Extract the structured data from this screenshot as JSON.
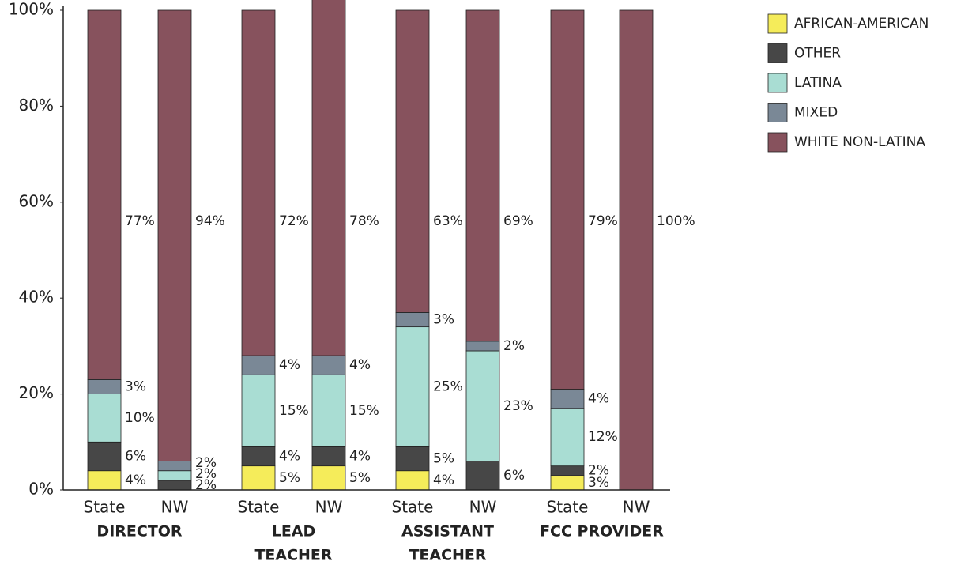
{
  "chart_data": {
    "type": "stacked_bar",
    "categories": [
      "State",
      "NW",
      "State",
      "NW",
      "State",
      "NW",
      "State",
      "NW"
    ],
    "groups": [
      [
        "DIRECTOR"
      ],
      [
        "LEAD",
        "TEACHER"
      ],
      [
        "ASSISTANT",
        "TEACHER"
      ],
      [
        "FCC PROVIDER"
      ]
    ],
    "series": [
      {
        "name": "AFRICAN-AMERICAN",
        "color": "#f5ec5a",
        "values": [
          4,
          0,
          5,
          5,
          4,
          0,
          3,
          0
        ],
        "value_labels": [
          "4%",
          null,
          "5%",
          "5%",
          "4%",
          null,
          "3%",
          null
        ]
      },
      {
        "name": "OTHER",
        "color": "#474747",
        "values": [
          6,
          2,
          4,
          4,
          5,
          6,
          2,
          0
        ],
        "value_labels": [
          "6%",
          "2%",
          "4%",
          "4%",
          "5%",
          "6%",
          "2%",
          null
        ]
      },
      {
        "name": "LATINA",
        "color": "#a9ddd3",
        "values": [
          10,
          2,
          15,
          15,
          25,
          23,
          12,
          0
        ],
        "value_labels": [
          "10%",
          "2%",
          "15%",
          "15%",
          "25%",
          "23%",
          "12%",
          null
        ]
      },
      {
        "name": "MIXED",
        "color": "#7a8896",
        "values": [
          3,
          2,
          4,
          4,
          3,
          2,
          4,
          0
        ],
        "value_labels": [
          "3%",
          "2%",
          "4%",
          "4%",
          "3%",
          "2%",
          "4%",
          null
        ]
      },
      {
        "name": "WHITE NON-LATINA",
        "color": "#87525d",
        "values": [
          77,
          94,
          72,
          78,
          63,
          69,
          79,
          100
        ],
        "value_labels": [
          "77%",
          "94%",
          "72%",
          "78%",
          "63%",
          "69%",
          "79%",
          "100%"
        ]
      }
    ],
    "ylim": [
      0,
      100
    ],
    "yticks": [
      {
        "value": 0,
        "label": "0%"
      },
      {
        "value": 20,
        "label": "20%"
      },
      {
        "value": 40,
        "label": "40%"
      },
      {
        "value": 60,
        "label": "60%"
      },
      {
        "value": 80,
        "label": "80%"
      },
      {
        "value": 100,
        "label": "100%"
      }
    ],
    "legend": "top-right"
  }
}
